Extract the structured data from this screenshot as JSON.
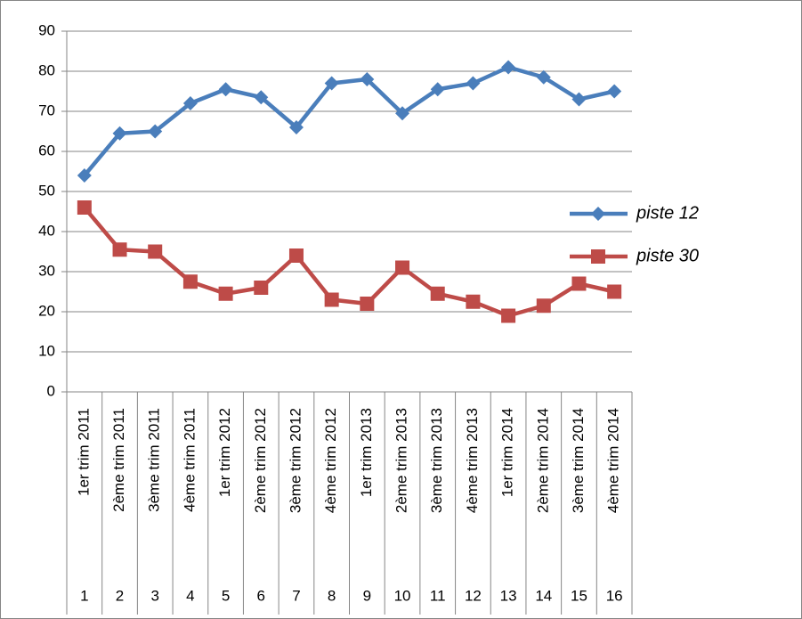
{
  "chart_data": {
    "type": "line",
    "categories": [
      "1er trim 2011",
      "2ème trim 2011",
      "3ème trim 2011",
      "4ème trim 2011",
      "1er trim 2012",
      "2ème trim 2012",
      "3ème trim 2012",
      "4ème trim 2012",
      "1er trim 2013",
      "2ème trim 2013",
      "3ème trim 2013",
      "4ème trim 2013",
      "1er trim 2014",
      "2ème trim 2014",
      "3ème trim 2014",
      "4ème trim 2014"
    ],
    "category_numbers": [
      1,
      2,
      3,
      4,
      5,
      6,
      7,
      8,
      9,
      10,
      11,
      12,
      13,
      14,
      15,
      16
    ],
    "series": [
      {
        "name": "piste 12",
        "color": "#4a7ebb",
        "marker": "diamond",
        "values": [
          54,
          64.5,
          65,
          72,
          75.5,
          73.5,
          66,
          77,
          78,
          69.5,
          75.5,
          77,
          81,
          78.5,
          73,
          75
        ]
      },
      {
        "name": "piste 30",
        "color": "#be4b48",
        "marker": "square",
        "values": [
          46,
          35.5,
          35,
          27.5,
          24.5,
          26,
          34,
          23,
          22,
          31,
          24.5,
          22.5,
          19,
          21.5,
          27,
          25
        ]
      }
    ],
    "ylim": [
      0,
      90
    ],
    "yticks": [
      0,
      10,
      20,
      30,
      40,
      50,
      60,
      70,
      80,
      90
    ],
    "grid": true,
    "legend": "right"
  }
}
